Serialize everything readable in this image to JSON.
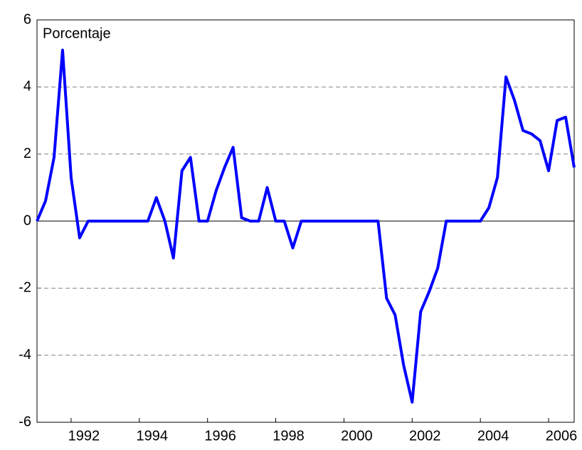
{
  "chart_data": {
    "type": "line",
    "annotation": "Porcentaje",
    "categories": [
      null,
      null,
      null,
      null,
      "1992",
      null,
      null,
      null,
      null,
      null,
      null,
      null,
      "1994",
      null,
      null,
      null,
      null,
      null,
      null,
      null,
      "1996",
      null,
      null,
      null,
      null,
      null,
      null,
      null,
      "1998",
      null,
      null,
      null,
      null,
      null,
      null,
      null,
      "2000",
      null,
      null,
      null,
      null,
      null,
      null,
      null,
      "2002",
      null,
      null,
      null,
      null,
      null,
      null,
      null,
      "2004",
      null,
      null,
      null,
      null,
      null,
      null,
      null,
      "2006",
      null,
      null,
      null
    ],
    "series": [
      {
        "color": "#0000ff",
        "values": [
          0,
          0.6,
          1.9,
          5.1,
          1.3,
          -0.5,
          0,
          0,
          0,
          0,
          0,
          0,
          0,
          0,
          0.7,
          0,
          -1.1,
          1.5,
          1.9,
          0,
          0,
          0.9,
          1.6,
          2.2,
          0.1,
          0,
          0,
          1.0,
          0,
          0,
          -0.8,
          0,
          0,
          0,
          0,
          0,
          0,
          0,
          0,
          0,
          0,
          -2.3,
          -2.8,
          -4.3,
          -5.4,
          -2.7,
          -2.1,
          -1.4,
          0,
          0,
          0,
          0,
          0,
          0.4,
          1.3,
          4.3,
          3.6,
          2.7,
          2.6,
          2.4,
          1.5,
          3.0,
          3.1,
          1.6
        ]
      }
    ],
    "ylim": [
      -6,
      6
    ],
    "yticks": [
      -6,
      -4,
      -2,
      0,
      2,
      4,
      6
    ],
    "grid": true
  }
}
